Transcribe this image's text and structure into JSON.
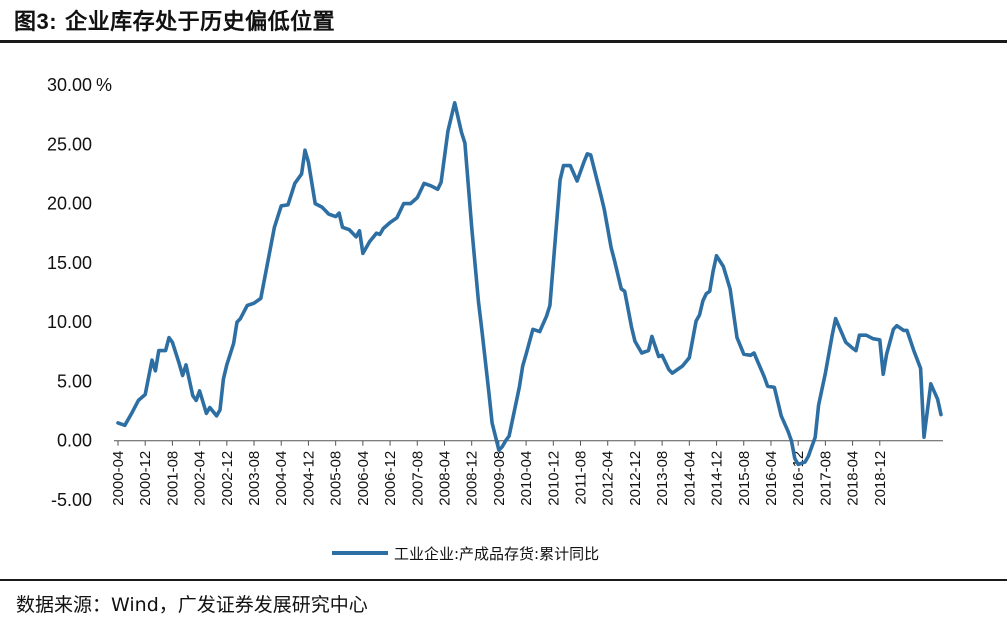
{
  "header": {
    "figure_number": "图3:",
    "title": "企业库存处于历史偏低位置"
  },
  "footer": {
    "source": "数据来源：Wind，广发证券发展研究中心"
  },
  "colors": {
    "series": "#2e6fa3",
    "rule": "#1a1a1a"
  },
  "chart_data": {
    "type": "line",
    "title": "",
    "xlabel": "",
    "ylabel": "",
    "y_unit": "%",
    "ylim": [
      -5,
      30
    ],
    "yticks": [
      -5,
      0,
      5,
      10,
      15,
      20,
      25,
      30
    ],
    "ytick_labels": [
      "-5.00",
      "0.00",
      "5.00",
      "10.00",
      "15.00",
      "20.00",
      "25.00",
      "30.00"
    ],
    "xticks": [
      "2000-04",
      "2000-12",
      "2001-08",
      "2002-04",
      "2002-12",
      "2003-08",
      "2004-04",
      "2004-12",
      "2005-08",
      "2006-04",
      "2006-12",
      "2007-08",
      "2008-04",
      "2008-12",
      "2009-08",
      "2010-04",
      "2010-12",
      "2011-08",
      "2012-04",
      "2012-12",
      "2013-08",
      "2014-04",
      "2014-12",
      "2015-08",
      "2016-04",
      "2016-12",
      "2017-08",
      "2018-04",
      "2018-12"
    ],
    "grid": false,
    "legend": "bottom",
    "series": [
      {
        "name": "工业企业:产成品存货:累计同比",
        "points": [
          [
            "2000-04",
            1.5
          ],
          [
            "2000-06",
            1.3
          ],
          [
            "2000-08",
            2.3
          ],
          [
            "2000-10",
            3.4
          ],
          [
            "2000-12",
            3.9
          ],
          [
            "2001-02",
            6.8
          ],
          [
            "2001-03",
            5.9
          ],
          [
            "2001-04",
            7.6
          ],
          [
            "2001-06",
            7.6
          ],
          [
            "2001-07",
            8.7
          ],
          [
            "2001-08",
            8.3
          ],
          [
            "2001-10",
            6.5
          ],
          [
            "2001-11",
            5.5
          ],
          [
            "2001-12",
            6.4
          ],
          [
            "2002-02",
            3.8
          ],
          [
            "2002-03",
            3.4
          ],
          [
            "2002-04",
            4.2
          ],
          [
            "2002-06",
            2.3
          ],
          [
            "2002-07",
            2.8
          ],
          [
            "2002-09",
            2.1
          ],
          [
            "2002-10",
            2.6
          ],
          [
            "2002-11",
            5.2
          ],
          [
            "2002-12",
            6.4
          ],
          [
            "2003-02",
            8.2
          ],
          [
            "2003-03",
            10.0
          ],
          [
            "2003-04",
            10.3
          ],
          [
            "2003-06",
            11.4
          ],
          [
            "2003-08",
            11.6
          ],
          [
            "2003-10",
            12.0
          ],
          [
            "2004-02",
            18.0
          ],
          [
            "2004-04",
            19.8
          ],
          [
            "2004-06",
            19.9
          ],
          [
            "2004-08",
            21.7
          ],
          [
            "2004-10",
            22.5
          ],
          [
            "2004-11",
            24.5
          ],
          [
            "2004-12",
            23.5
          ],
          [
            "2005-02",
            20.0
          ],
          [
            "2005-04",
            19.7
          ],
          [
            "2005-06",
            19.1
          ],
          [
            "2005-08",
            18.9
          ],
          [
            "2005-09",
            19.2
          ],
          [
            "2005-10",
            18.0
          ],
          [
            "2005-12",
            17.8
          ],
          [
            "2006-02",
            17.2
          ],
          [
            "2006-03",
            17.7
          ],
          [
            "2006-04",
            15.8
          ],
          [
            "2006-06",
            16.8
          ],
          [
            "2006-08",
            17.5
          ],
          [
            "2006-09",
            17.4
          ],
          [
            "2006-10",
            17.9
          ],
          [
            "2006-12",
            18.4
          ],
          [
            "2007-02",
            18.8
          ],
          [
            "2007-04",
            20.0
          ],
          [
            "2007-06",
            20.0
          ],
          [
            "2007-08",
            20.5
          ],
          [
            "2007-10",
            21.7
          ],
          [
            "2007-12",
            21.5
          ],
          [
            "2008-02",
            21.2
          ],
          [
            "2008-03",
            21.8
          ],
          [
            "2008-05",
            26.1
          ],
          [
            "2008-07",
            28.5
          ],
          [
            "2008-09",
            26.0
          ],
          [
            "2008-10",
            25.1
          ],
          [
            "2008-12",
            18.0
          ],
          [
            "2009-02",
            11.7
          ],
          [
            "2009-03",
            9.3
          ],
          [
            "2009-05",
            4.2
          ],
          [
            "2009-06",
            1.5
          ],
          [
            "2009-08",
            -0.8
          ],
          [
            "2009-09",
            -0.5
          ],
          [
            "2009-10",
            0.0
          ],
          [
            "2009-11",
            0.4
          ],
          [
            "2010-02",
            4.5
          ],
          [
            "2010-03",
            6.3
          ],
          [
            "2010-04",
            7.3
          ],
          [
            "2010-06",
            9.4
          ],
          [
            "2010-08",
            9.2
          ],
          [
            "2010-10",
            10.5
          ],
          [
            "2010-11",
            11.4
          ],
          [
            "2011-02",
            22.0
          ],
          [
            "2011-03",
            23.2
          ],
          [
            "2011-05",
            23.2
          ],
          [
            "2011-07",
            21.9
          ],
          [
            "2011-09",
            23.5
          ],
          [
            "2011-10",
            24.2
          ],
          [
            "2011-11",
            24.1
          ],
          [
            "2012-02",
            20.7
          ],
          [
            "2012-03",
            19.5
          ],
          [
            "2012-05",
            16.3
          ],
          [
            "2012-06",
            15.2
          ],
          [
            "2012-08",
            12.8
          ],
          [
            "2012-09",
            12.6
          ],
          [
            "2012-11",
            9.6
          ],
          [
            "2012-12",
            8.4
          ],
          [
            "2013-02",
            7.4
          ],
          [
            "2013-04",
            7.6
          ],
          [
            "2013-05",
            8.8
          ],
          [
            "2013-07",
            7.1
          ],
          [
            "2013-08",
            7.2
          ],
          [
            "2013-10",
            6.0
          ],
          [
            "2013-11",
            5.7
          ],
          [
            "2014-02",
            6.3
          ],
          [
            "2014-04",
            7.0
          ],
          [
            "2014-06",
            10.1
          ],
          [
            "2014-07",
            10.6
          ],
          [
            "2014-08",
            11.8
          ],
          [
            "2014-09",
            12.4
          ],
          [
            "2014-10",
            12.6
          ],
          [
            "2014-11",
            14.3
          ],
          [
            "2014-12",
            15.6
          ],
          [
            "2015-02",
            14.7
          ],
          [
            "2015-04",
            12.8
          ],
          [
            "2015-06",
            8.7
          ],
          [
            "2015-08",
            7.3
          ],
          [
            "2015-10",
            7.2
          ],
          [
            "2015-11",
            7.4
          ],
          [
            "2016-02",
            5.4
          ],
          [
            "2016-03",
            4.6
          ],
          [
            "2016-05",
            4.5
          ],
          [
            "2016-07",
            2.1
          ],
          [
            "2016-09",
            0.8
          ],
          [
            "2016-10",
            0.0
          ],
          [
            "2016-11",
            -1.5
          ],
          [
            "2016-12",
            -2.0
          ],
          [
            "2017-02",
            -1.8
          ],
          [
            "2017-03",
            -1.3
          ],
          [
            "2017-05",
            0.3
          ],
          [
            "2017-06",
            3.0
          ],
          [
            "2017-08",
            5.7
          ],
          [
            "2017-10",
            8.9
          ],
          [
            "2017-11",
            10.3
          ],
          [
            "2018-02",
            8.3
          ],
          [
            "2018-04",
            7.8
          ],
          [
            "2018-05",
            7.6
          ],
          [
            "2018-06",
            8.9
          ],
          [
            "2018-08",
            8.9
          ],
          [
            "2018-10",
            8.6
          ],
          [
            "2018-12",
            8.5
          ],
          [
            "2019-01",
            5.6
          ],
          [
            "2019-02",
            7.3
          ],
          [
            "2019-04",
            9.4
          ],
          [
            "2019-05",
            9.7
          ],
          [
            "2019-07",
            9.3
          ],
          [
            "2019-08",
            9.3
          ],
          [
            "2019-10",
            7.6
          ],
          [
            "2019-12",
            6.1
          ],
          [
            "2020-01",
            0.3
          ],
          [
            "2020-03",
            4.8
          ],
          [
            "2020-05",
            3.5
          ],
          [
            "2020-06",
            2.2
          ]
        ]
      }
    ]
  }
}
